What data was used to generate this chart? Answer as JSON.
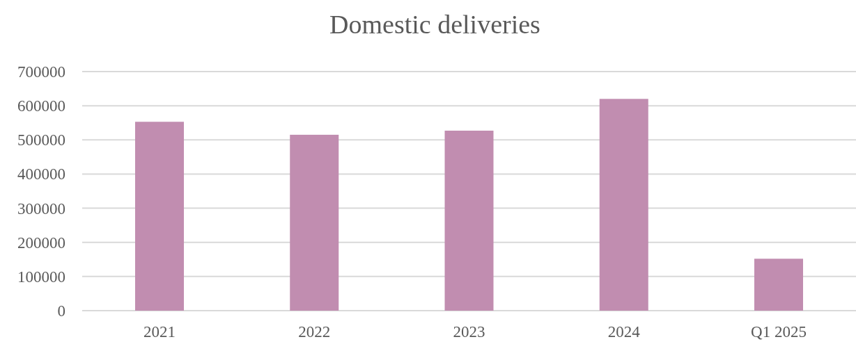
{
  "chart_data": {
    "type": "bar",
    "title": "Domestic deliveries",
    "categories": [
      "2021",
      "2022",
      "2023",
      "2024",
      "Q1 2025"
    ],
    "values": [
      553000,
      515000,
      527000,
      620000,
      152000
    ],
    "color": "#c18db0",
    "ylim": [
      0,
      700000
    ],
    "yticks": [
      0,
      100000,
      200000,
      300000,
      400000,
      500000,
      600000,
      700000
    ],
    "grid": "y"
  }
}
